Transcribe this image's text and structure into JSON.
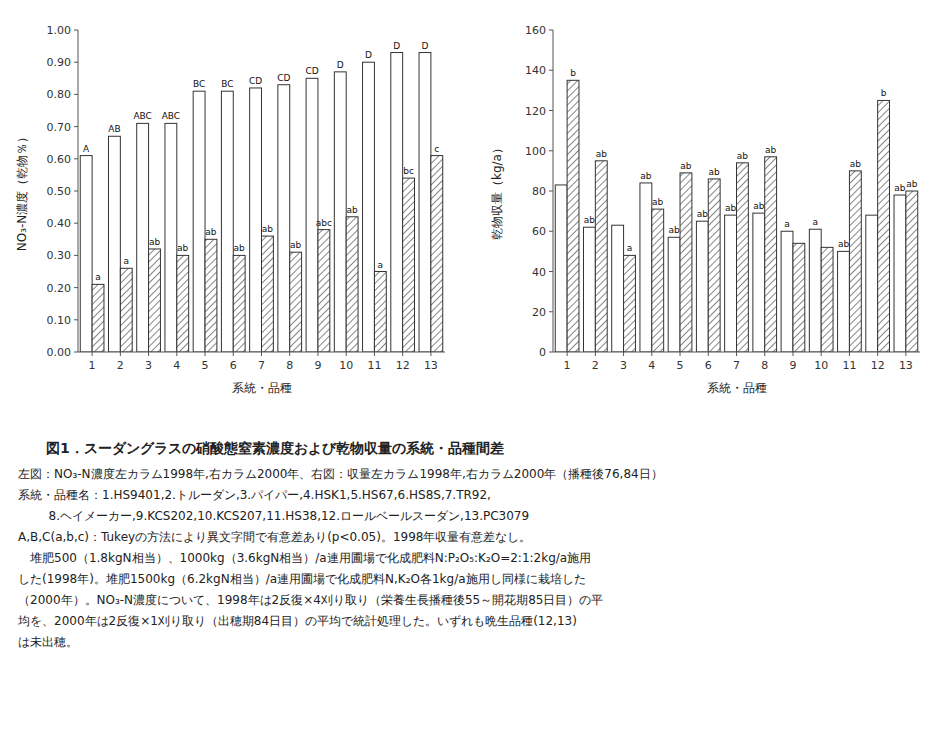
{
  "title": "図1．スーダングラスの硝酸態窒素濃度および乾物収量の系統・品種間差",
  "annotations": [
    "左図：NO₃-N濃度左カラム1998年,右カラム2000年、右図：収量左カラム1998年,右カラム2000年（播種後76,84日）",
    "系統・品種名：1.HS9401,2.トルーダン,3.パイパー,4.HSK1,5.HS67,6.HS8S,7.TR92,",
    "        8.ヘイメーカー,9.KCS202,10.KCS207,11.HS38,12.ロールベールスーダン,13.PC3079",
    "A,B,C(a,b,c)：Tukeyの方法により異文字間で有意差あり(p<0.05)。1998年収量有意差なし。",
    "　堆肥500（1.8kgN相当）、1000kg（3.6kgN相当）/a連用圃場で化成肥料N:P₂O₅:K₂O=2:1:2kg/a施用",
    "した(1998年)。堆肥1500kg（6.2kgN相当）/a連用圃場で化成肥料N,K₂O各1kg/a施用し同様に栽培した",
    "（2000年）。NO₃-N濃度について、1998年は2反復×4刈り取り（栄養生長播種後55～開花期85日目）の平",
    "均を、2000年は2反復×1刈り取り（出穂期84日目）の平均で統計処理した。いずれも晩生品種(12,13)",
    "は未出穂。"
  ],
  "chart_data": [
    {
      "type": "bar",
      "categories": [
        "1",
        "2",
        "3",
        "4",
        "5",
        "6",
        "7",
        "8",
        "9",
        "10",
        "11",
        "12",
        "13"
      ],
      "series": [
        {
          "values": [
            0.61,
            0.67,
            0.71,
            0.71,
            0.81,
            0.81,
            0.82,
            0.83,
            0.85,
            0.87,
            0.9,
            0.93,
            0.93
          ],
          "annotations": [
            "A",
            "AB",
            "ABC",
            "ABC",
            "BC",
            "BC",
            "CD",
            "CD",
            "CD",
            "D",
            "D",
            "D",
            "D"
          ]
        },
        {
          "values": [
            0.21,
            0.26,
            0.32,
            0.3,
            0.35,
            0.3,
            0.36,
            0.31,
            0.38,
            0.42,
            0.25,
            0.54,
            0.61
          ],
          "annotations": [
            "a",
            "a",
            "ab",
            "ab",
            "ab",
            "ab",
            "ab",
            "ab",
            "abc",
            "ab",
            "a",
            "bc",
            "c"
          ]
        }
      ],
      "xlabel": "系統・品種",
      "ylabel": "NO₃-N濃度（乾物％）",
      "ylim": [
        0.0,
        1.0
      ],
      "yticks": [
        {
          "value": 0.0,
          "label": "0.00"
        },
        {
          "value": 0.1,
          "label": "0.10"
        },
        {
          "value": 0.2,
          "label": "0.20"
        },
        {
          "value": 0.3,
          "label": "0.30"
        },
        {
          "value": 0.4,
          "label": "0.40"
        },
        {
          "value": 0.5,
          "label": "0.50"
        },
        {
          "value": 0.6,
          "label": "0.60"
        },
        {
          "value": 0.7,
          "label": "0.70"
        },
        {
          "value": 0.8,
          "label": "0.80"
        },
        {
          "value": 0.9,
          "label": "0.90"
        },
        {
          "value": 1.0,
          "label": "1.00"
        }
      ],
      "grid": false
    },
    {
      "type": "bar",
      "categories": [
        "1",
        "2",
        "3",
        "4",
        "5",
        "6",
        "7",
        "8",
        "9",
        "10",
        "11",
        "12",
        "13"
      ],
      "series": [
        {
          "values": [
            83,
            62,
            63,
            84,
            57,
            65,
            68,
            69,
            60,
            61,
            50,
            68,
            78
          ],
          "annotations": [
            null,
            "ab",
            null,
            "ab",
            "ab",
            "ab",
            "ab",
            "ab",
            "a",
            "a",
            "ab",
            null,
            "ab"
          ]
        },
        {
          "values": [
            135,
            95,
            48,
            71,
            89,
            86,
            94,
            97,
            54,
            52,
            90,
            125,
            80
          ],
          "annotations": [
            "b",
            "ab",
            "a",
            "ab",
            "ab",
            "ab",
            "ab",
            "ab",
            null,
            null,
            "ab",
            "b",
            "ab"
          ]
        }
      ],
      "xlabel": "系統・品種",
      "ylabel": "乾物収量（kg/a）",
      "ylim": [
        0,
        160
      ],
      "yticks": [
        0,
        20,
        40,
        60,
        80,
        100,
        120,
        140,
        160
      ],
      "grid": false
    }
  ]
}
